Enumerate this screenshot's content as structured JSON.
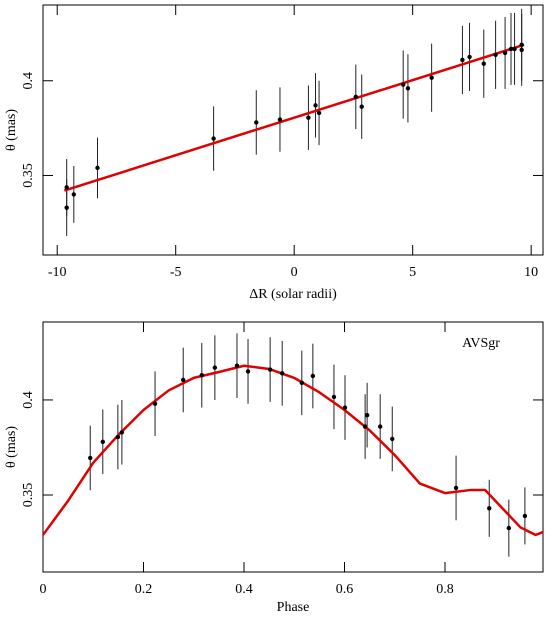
{
  "chart_data": [
    {
      "type": "scatter",
      "xlabel": "ΔR (solar radii)",
      "ylabel": "θ (mas)",
      "x": [
        -9.6,
        -9.6,
        -9.3,
        -8.3,
        -3.4,
        -1.6,
        -0.6,
        0.6,
        0.9,
        1.05,
        2.6,
        2.85,
        4.6,
        4.8,
        5.8,
        7.1,
        7.4,
        8.0,
        8.5,
        8.9,
        9.15,
        9.3,
        9.6,
        9.6
      ],
      "values": [
        0.3437,
        0.333,
        0.34,
        0.354,
        0.3695,
        0.378,
        0.3795,
        0.3805,
        0.387,
        0.383,
        0.3915,
        0.3863,
        0.398,
        0.396,
        0.4016,
        0.411,
        0.4126,
        0.409,
        0.4137,
        0.4147,
        0.4168,
        0.4168,
        0.419,
        0.4163
      ],
      "errors": [
        0.015,
        0.015,
        0.015,
        0.016,
        0.017,
        0.017,
        0.017,
        0.017,
        0.017,
        0.017,
        0.017,
        0.017,
        0.018,
        0.018,
        0.018,
        0.018,
        0.018,
        0.018,
        0.018,
        0.019,
        0.019,
        0.019,
        0.019,
        0.019
      ],
      "color": "#000000",
      "fit": {
        "x": [
          -9.7,
          9.7
        ],
        "values": [
          0.342,
          0.419
        ],
        "color": "#e00000"
      },
      "xlim": [
        -10.6,
        10.5
      ],
      "ylim": [
        0.308,
        0.44
      ],
      "xticks": [
        -10,
        -5,
        0,
        5,
        10
      ],
      "yticks": [
        0.35,
        0.4
      ]
    },
    {
      "type": "scatter",
      "xlabel": "Phase",
      "ylabel": "θ (mas)",
      "annotation": "AVSgr",
      "x": [
        0.094,
        0.119,
        0.149,
        0.157,
        0.223,
        0.279,
        0.316,
        0.342,
        0.386,
        0.408,
        0.452,
        0.476,
        0.515,
        0.537,
        0.579,
        0.601,
        0.641,
        0.645,
        0.671,
        0.695,
        0.822,
        0.888,
        0.927,
        0.959
      ],
      "values": [
        0.3695,
        0.378,
        0.3805,
        0.383,
        0.398,
        0.4105,
        0.413,
        0.417,
        0.418,
        0.415,
        0.416,
        0.414,
        0.409,
        0.4126,
        0.4016,
        0.396,
        0.386,
        0.392,
        0.386,
        0.3795,
        0.3537,
        0.343,
        0.3326,
        0.339
      ],
      "errors": [
        0.017,
        0.017,
        0.017,
        0.017,
        0.017,
        0.017,
        0.017,
        0.017,
        0.017,
        0.017,
        0.017,
        0.017,
        0.017,
        0.017,
        0.017,
        0.017,
        0.017,
        0.017,
        0.017,
        0.017,
        0.017,
        0.015,
        0.015,
        0.015
      ],
      "color": "#000000",
      "fit": {
        "x": [
          0,
          0.05,
          0.1,
          0.15,
          0.2,
          0.25,
          0.3,
          0.35,
          0.4,
          0.45,
          0.5,
          0.55,
          0.6,
          0.65,
          0.7,
          0.75,
          0.8,
          0.85,
          0.88,
          0.9,
          0.95,
          0.98,
          0.995
        ],
        "values": [
          0.329,
          0.347,
          0.367,
          0.3816,
          0.3947,
          0.405,
          0.4116,
          0.4147,
          0.418,
          0.4163,
          0.4116,
          0.404,
          0.3947,
          0.384,
          0.371,
          0.356,
          0.351,
          0.3526,
          0.3526,
          0.347,
          0.333,
          0.329,
          0.3305
        ],
        "color": "#e00000"
      },
      "xlim": [
        0,
        0.995
      ],
      "ylim": [
        0.3095,
        0.441
      ],
      "xticks": [
        0,
        0.2,
        0.4,
        0.6,
        0.8
      ],
      "yticks": [
        0.35,
        0.4
      ]
    }
  ]
}
